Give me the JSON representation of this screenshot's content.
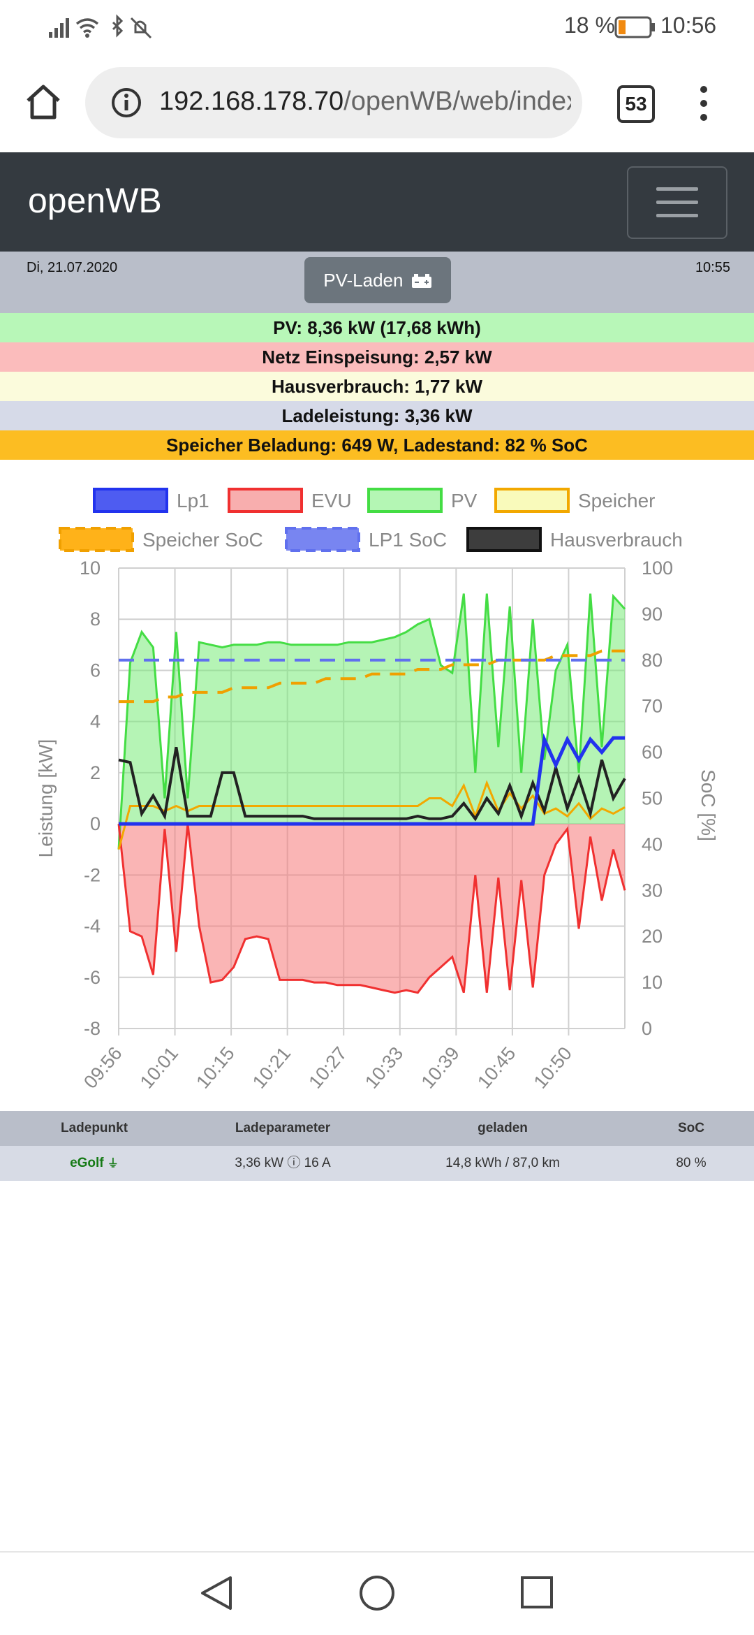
{
  "status_bar": {
    "battery": "18 %",
    "time": "10:56"
  },
  "browser": {
    "url_main": "192.168.178.70",
    "url_path": "/openWB/web/index.p",
    "tab_count": "53"
  },
  "app": {
    "title": "openWB"
  },
  "info": {
    "date": "Di, 21.07.2020",
    "time": "10:55",
    "mode_label": "PV-Laden"
  },
  "summary": {
    "pv": "PV: 8,36 kW (17,68 kWh)",
    "netz": "Netz Einspeisung: 2,57 kW",
    "haus": "Hausverbrauch: 1,77 kW",
    "lade": "Ladeleistung: 3,36 kW",
    "speicher": "Speicher Beladung: 649 W, Ladestand: 82 % SoC"
  },
  "colors": {
    "pv_row": "#b8f7b8",
    "netz_row": "#fbbcbc",
    "haus_row": "#fbfbdc",
    "lade_row": "#d6dae8",
    "speicher_row": "#fcbd22",
    "lp1": "#2233ee",
    "evu": "#f03030",
    "pv": "#44dd44",
    "speicher": "#f2a800",
    "speicher_soc": "#f0a000",
    "lp1_soc": "#6070ee",
    "haus": "#222222"
  },
  "chart_data": {
    "type": "line",
    "ylabel": "Leistung [kW]",
    "y2label": "SoC [%]",
    "ylim": [
      -8,
      10
    ],
    "y2lim": [
      0,
      100
    ],
    "yticks": [
      "10",
      "8",
      "6",
      "4",
      "2",
      "0",
      "-2",
      "-4",
      "-6",
      "-8"
    ],
    "y2ticks": [
      "100",
      "90",
      "80",
      "70",
      "60",
      "50",
      "40",
      "30",
      "20",
      "10",
      "0"
    ],
    "xticks": [
      "09:56",
      "10:01",
      "10:15",
      "10:21",
      "10:27",
      "10:33",
      "10:39",
      "10:45",
      "10:50"
    ],
    "legend": [
      "Lp1",
      "EVU",
      "PV",
      "Speicher",
      "Speicher SoC",
      "LP1 SoC",
      "Hausverbrauch"
    ],
    "legend_position": "top",
    "grid": true,
    "x": [
      0,
      2,
      4,
      6,
      8,
      10,
      12,
      14,
      16,
      18,
      20,
      22,
      24,
      26,
      28,
      30,
      32,
      34,
      36,
      38,
      40,
      42,
      44,
      46,
      48,
      50,
      52,
      54,
      56,
      58,
      60,
      62,
      64,
      66,
      68,
      70,
      72,
      74,
      76,
      78,
      80,
      82,
      84,
      86,
      88
    ],
    "series": [
      {
        "name": "PV",
        "values": [
          -1.0,
          6.3,
          7.5,
          6.9,
          1.0,
          7.5,
          1.0,
          7.1,
          7.0,
          6.9,
          7.0,
          7.0,
          7.0,
          7.1,
          7.1,
          7.0,
          7.0,
          7.0,
          7.0,
          7.0,
          7.1,
          7.1,
          7.1,
          7.2,
          7.3,
          7.5,
          7.8,
          8.0,
          6.2,
          5.9,
          9.0,
          2.0,
          9.0,
          3.0,
          8.5,
          2.0,
          8.0,
          2.5,
          6.0,
          7.0,
          2.0,
          9.0,
          3.0,
          8.9,
          8.4
        ]
      },
      {
        "name": "EVU",
        "values": [
          0.0,
          -4.2,
          -4.4,
          -5.9,
          -0.2,
          -5.0,
          0.0,
          -4.0,
          -6.2,
          -6.1,
          -5.6,
          -4.5,
          -4.4,
          -4.5,
          -6.1,
          -6.1,
          -6.1,
          -6.2,
          -6.2,
          -6.3,
          -6.3,
          -6.3,
          -6.4,
          -6.5,
          -6.6,
          -6.5,
          -6.6,
          -6.0,
          -5.6,
          -5.2,
          -6.6,
          -2.0,
          -6.6,
          -2.1,
          -6.5,
          -2.2,
          -6.4,
          -2.0,
          -0.8,
          -0.2,
          -4.1,
          -0.5,
          -3.0,
          -1.0,
          -2.6
        ]
      },
      {
        "name": "Lp1",
        "values": [
          0,
          0,
          0,
          0,
          0,
          0,
          0,
          0,
          0,
          0,
          0,
          0,
          0,
          0,
          0,
          0,
          0,
          0,
          0,
          0,
          0,
          0,
          0,
          0,
          0,
          0,
          0,
          0,
          0,
          0,
          0,
          0,
          0,
          0,
          0,
          0,
          0,
          3.3,
          2.3,
          3.3,
          2.5,
          3.3,
          2.8,
          3.36,
          3.36
        ]
      },
      {
        "name": "Hausverbrauch",
        "values": [
          2.5,
          2.4,
          0.4,
          1.1,
          0.3,
          3.0,
          0.3,
          0.3,
          0.3,
          2.0,
          2.0,
          0.3,
          0.3,
          0.3,
          0.3,
          0.3,
          0.3,
          0.2,
          0.2,
          0.2,
          0.2,
          0.2,
          0.2,
          0.2,
          0.2,
          0.2,
          0.3,
          0.2,
          0.2,
          0.3,
          0.8,
          0.2,
          1.0,
          0.4,
          1.5,
          0.3,
          1.6,
          0.5,
          2.2,
          0.6,
          1.8,
          0.4,
          2.5,
          1.0,
          1.77
        ]
      },
      {
        "name": "Speicher",
        "values": [
          -1.0,
          0.7,
          0.7,
          0.7,
          0.5,
          0.7,
          0.5,
          0.7,
          0.7,
          0.7,
          0.7,
          0.7,
          0.7,
          0.7,
          0.7,
          0.7,
          0.7,
          0.7,
          0.7,
          0.7,
          0.7,
          0.7,
          0.7,
          0.7,
          0.7,
          0.7,
          0.7,
          1.0,
          1.0,
          0.7,
          1.5,
          0.3,
          1.6,
          0.5,
          1.2,
          0.6,
          1.1,
          0.4,
          0.6,
          0.3,
          0.8,
          0.2,
          0.6,
          0.4,
          0.65
        ]
      },
      {
        "name": "Speicher SoC",
        "values": [
          71,
          71,
          71,
          71,
          72,
          72,
          73,
          73,
          73,
          73,
          74,
          74,
          74,
          74,
          75,
          75,
          75,
          75,
          76,
          76,
          76,
          76,
          77,
          77,
          77,
          77,
          78,
          78,
          78,
          79,
          79,
          79,
          79,
          80,
          80,
          80,
          80,
          80,
          81,
          81,
          81,
          81,
          82,
          82,
          82
        ]
      },
      {
        "name": "LP1 SoC",
        "values": [
          80,
          80,
          80,
          80,
          80,
          80,
          80,
          80,
          80,
          80,
          80,
          80,
          80,
          80,
          80,
          80,
          80,
          80,
          80,
          80,
          80,
          80,
          80,
          80,
          80,
          80,
          80,
          80,
          80,
          80,
          80,
          80,
          80,
          80,
          80,
          80,
          80,
          80,
          80,
          80,
          80,
          80,
          80,
          80,
          80
        ]
      }
    ]
  },
  "table": {
    "headers": [
      "Ladepunkt",
      "Ladeparameter",
      "geladen",
      "SoC"
    ],
    "row": {
      "ladepunkt": "eGolf",
      "parameter": "3,36 kW ⓘ 16 A",
      "geladen": "14,8 kWh / 87,0 km",
      "soc": "80 %"
    }
  }
}
